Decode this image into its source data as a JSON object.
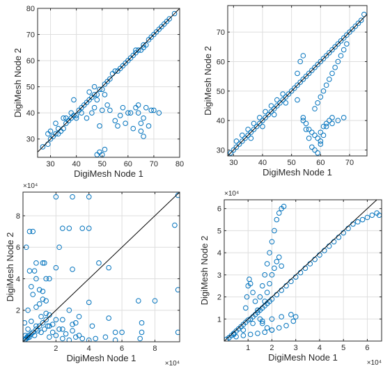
{
  "colors": {
    "marker": "#0072BD",
    "diagonal": "#000000",
    "grid": "#dedede",
    "axis": "#262626"
  },
  "chart_data": [
    {
      "type": "scatter",
      "xlabel": "DigiMesh Node 1",
      "ylabel": "DigiMesh Node 2",
      "xlim": [
        25,
        80
      ],
      "ylim": [
        23,
        80
      ],
      "xticks": [
        30,
        40,
        50,
        60,
        70,
        80
      ],
      "yticks": [
        30,
        40,
        50,
        60,
        70,
        80
      ],
      "tick_labels_x": [
        "30",
        "40",
        "50",
        "60",
        "70",
        "80"
      ],
      "tick_labels_y": [
        "30",
        "40",
        "50",
        "60",
        "70",
        "80"
      ],
      "exponent_label": "",
      "grid": true,
      "reference_line": "y = x",
      "x": [
        27,
        29,
        30,
        31,
        32,
        33,
        34,
        35,
        36,
        37,
        38,
        39,
        40,
        41,
        42,
        43,
        44,
        45,
        46,
        47,
        48,
        49,
        50,
        51,
        52,
        53,
        54,
        55,
        56,
        57,
        58,
        59,
        60,
        61,
        62,
        63,
        64,
        65,
        66,
        67,
        68,
        69,
        70,
        71,
        72,
        73,
        74,
        75,
        76,
        78,
        30,
        33,
        36,
        38,
        40,
        42,
        44,
        46,
        47,
        48,
        49,
        50,
        52,
        53,
        55,
        56,
        57,
        58,
        59,
        60,
        61,
        62,
        63,
        64,
        64,
        65,
        65,
        66,
        66,
        67,
        68,
        69,
        70,
        72,
        48,
        49,
        50,
        51,
        63,
        66,
        29,
        32,
        35,
        39,
        45,
        47,
        51
      ],
      "y": [
        27,
        28,
        30,
        31,
        32,
        32,
        33,
        34,
        36,
        37,
        38,
        39,
        39,
        41,
        42,
        43,
        44,
        45,
        46,
        47,
        47,
        49,
        49,
        51,
        52,
        53,
        55,
        56,
        56,
        57,
        58,
        59,
        60,
        61,
        62,
        63,
        64,
        64,
        66,
        66,
        68,
        69,
        70,
        71,
        72,
        73,
        74,
        75,
        76,
        78,
        33,
        34,
        38,
        40,
        38,
        40,
        38,
        40,
        42,
        45,
        35,
        41,
        43,
        41,
        37,
        35,
        39,
        42,
        36,
        40,
        40,
        34,
        42,
        43,
        40,
        36,
        33,
        31,
        38,
        42,
        35,
        41,
        41,
        40,
        24,
        25,
        24,
        26,
        64,
        65,
        32,
        36,
        38,
        45,
        48,
        50,
        47
      ]
    },
    {
      "type": "scatter",
      "xlabel": "DigiMesh Node 1",
      "ylabel": "DigiMesh Node 2",
      "xlim": [
        28,
        76
      ],
      "ylim": [
        28,
        79
      ],
      "xticks": [
        30,
        40,
        50,
        60,
        70
      ],
      "yticks": [
        30,
        40,
        50,
        60,
        70
      ],
      "tick_labels_x": [
        "30",
        "40",
        "50",
        "60",
        "70"
      ],
      "tick_labels_y": [
        "30",
        "40",
        "50",
        "60",
        "70"
      ],
      "exponent_label": "",
      "grid": true,
      "reference_line": "y = x",
      "x": [
        29,
        30,
        31,
        32,
        33,
        34,
        35,
        36,
        37,
        38,
        39,
        40,
        41,
        42,
        43,
        44,
        45,
        46,
        47,
        48,
        49,
        50,
        51,
        52,
        53,
        54,
        55,
        56,
        57,
        58,
        59,
        60,
        61,
        62,
        63,
        64,
        65,
        66,
        67,
        68,
        69,
        70,
        71,
        72,
        73,
        74,
        75,
        31,
        33,
        35,
        37,
        39,
        41,
        43,
        45,
        47,
        36,
        40,
        44,
        48,
        52,
        54,
        55,
        56,
        57,
        58,
        59,
        60,
        61,
        62,
        64,
        66,
        68,
        58,
        59,
        60,
        61,
        62,
        63,
        64,
        65,
        66,
        67,
        68,
        69,
        54,
        55,
        56,
        57,
        58,
        59,
        60,
        60,
        61,
        62,
        63,
        64,
        52,
        53,
        54
      ],
      "y": [
        29,
        30,
        31,
        32,
        33,
        34,
        35,
        36,
        37,
        38,
        39,
        40,
        41,
        42,
        43,
        44,
        45,
        46,
        47,
        48,
        49,
        50,
        51,
        52,
        53,
        54,
        55,
        56,
        57,
        58,
        59,
        60,
        61,
        62,
        63,
        64,
        65,
        66,
        67,
        68,
        69,
        70,
        71,
        72,
        73,
        74,
        76,
        33,
        35,
        37,
        39,
        41,
        43,
        45,
        47,
        49,
        34,
        38,
        42,
        46,
        47,
        41,
        37,
        34,
        31,
        30,
        29,
        32,
        35,
        38,
        39,
        40,
        41,
        44,
        46,
        48,
        50,
        52,
        54,
        56,
        58,
        60,
        62,
        64,
        66,
        40,
        39,
        37,
        36,
        35,
        34,
        33,
        36,
        38,
        39,
        40,
        41,
        56,
        60,
        62
      ]
    },
    {
      "type": "scatter",
      "xlabel": "DigiMesh Node 1",
      "ylabel": "DigiMesh Node 2",
      "xlim": [
        0,
        95000
      ],
      "ylim": [
        0,
        95000
      ],
      "xticks": [
        20000,
        40000,
        60000,
        80000
      ],
      "yticks": [
        20000,
        40000,
        60000,
        80000
      ],
      "tick_labels_x": [
        "2",
        "4",
        "6",
        "8"
      ],
      "tick_labels_y": [
        "2",
        "4",
        "6",
        "8"
      ],
      "exponent_label": "×10⁴",
      "grid": true,
      "reference_line": "y = x",
      "x": [
        1000,
        1500,
        2000,
        2500,
        3000,
        3500,
        4000,
        5000,
        6000,
        7000,
        8000,
        9000,
        10000,
        11000,
        12000,
        13000,
        14000,
        15000,
        16000,
        18000,
        20000,
        22000,
        24000,
        26000,
        28000,
        30000,
        32000,
        34000,
        36000,
        40000,
        44000,
        50000,
        56000,
        72000,
        94000,
        3000,
        6000,
        8000,
        10000,
        12000,
        13000,
        14000,
        16000,
        20000,
        22000,
        24000,
        28000,
        30000,
        36000,
        40000,
        46000,
        52000,
        60000,
        70000,
        80000,
        94000,
        2000,
        4000,
        6000,
        8000,
        10000,
        12000,
        14000,
        16000,
        20000,
        24000,
        28000,
        30000,
        34000,
        40000,
        52000,
        71000,
        94000,
        4000,
        8000,
        12000,
        16000,
        20000,
        30000,
        40000,
        1000,
        3000,
        5000,
        8000,
        11000,
        14000,
        18000,
        24000,
        32000,
        42000,
        56000,
        72000,
        92000,
        1500,
        2500,
        5000,
        7000
      ],
      "y": [
        1000,
        1500,
        2000,
        3000,
        2500,
        4000,
        3000,
        5000,
        6000,
        4000,
        8000,
        7000,
        10000,
        6000,
        12000,
        8000,
        14000,
        10000,
        3000,
        6000,
        4000,
        8000,
        2000,
        5000,
        1000,
        7000,
        3000,
        4000,
        2000,
        1000,
        2000,
        3000,
        1000,
        6000,
        6000,
        20000,
        30000,
        40000,
        33000,
        27000,
        50000,
        40000,
        17000,
        47000,
        60000,
        72000,
        72000,
        46000,
        72000,
        72000,
        50000,
        47000,
        6000,
        26000,
        26000,
        93000,
        60000,
        70000,
        70000,
        10000,
        24000,
        32000,
        18000,
        10000,
        14000,
        8000,
        20000,
        11000,
        16000,
        25000,
        15000,
        2000,
        33000,
        45000,
        50000,
        50000,
        40000,
        92000,
        92000,
        92000,
        12000,
        8000,
        13000,
        22000,
        16000,
        26000,
        11000,
        14000,
        12000,
        10000,
        6000,
        12000,
        74000,
        4000,
        3000,
        35000,
        45000
      ]
    },
    {
      "type": "scatter",
      "xlabel": "DigiMesh Node 1",
      "ylabel": "DigiMesh Node 2",
      "xlim": [
        0,
        66000
      ],
      "ylim": [
        0,
        64000
      ],
      "xticks": [
        10000,
        20000,
        30000,
        40000,
        50000,
        60000
      ],
      "yticks": [
        10000,
        20000,
        30000,
        40000,
        50000,
        60000
      ],
      "tick_labels_x": [
        "1",
        "2",
        "3",
        "4",
        "5",
        "6"
      ],
      "tick_labels_y": [
        "1",
        "2",
        "3",
        "4",
        "5",
        "6"
      ],
      "exponent_label": "×10⁴",
      "grid": true,
      "reference_line": "y = x",
      "x": [
        1000,
        2000,
        3000,
        4000,
        5000,
        6000,
        7000,
        8000,
        9000,
        10000,
        11000,
        12000,
        13000,
        14000,
        15000,
        16000,
        17000,
        18000,
        19000,
        20000,
        22000,
        24000,
        26000,
        28000,
        30000,
        32000,
        34000,
        36000,
        38000,
        40000,
        42000,
        44000,
        46000,
        48000,
        50000,
        52000,
        54000,
        56000,
        58000,
        60000,
        62000,
        64000,
        65000,
        2000,
        5000,
        8000,
        11000,
        14000,
        17000,
        20000,
        23000,
        26000,
        29000,
        30000,
        28000,
        24000,
        20000,
        16000,
        12000,
        8000,
        4000,
        15000,
        16000,
        17000,
        18000,
        19000,
        20000,
        21000,
        22000,
        23000,
        24000,
        25000,
        17000,
        18000,
        19000,
        20000,
        21000,
        22000,
        23000,
        24000,
        9000,
        9500,
        10000,
        10500,
        11000,
        12000,
        13000,
        14000,
        15000,
        16000,
        18000,
        20000
      ],
      "y": [
        800,
        1500,
        2500,
        3500,
        4500,
        5500,
        6500,
        7500,
        8500,
        9500,
        10000,
        11000,
        12000,
        13000,
        14000,
        15000,
        16000,
        17000,
        18000,
        19000,
        21000,
        23000,
        25000,
        27000,
        29000,
        31000,
        33000,
        35000,
        37000,
        39000,
        41000,
        43000,
        45000,
        47000,
        49000,
        51000,
        53000,
        54000,
        55000,
        56000,
        57000,
        58000,
        57000,
        1500,
        2000,
        2500,
        3000,
        3500,
        4000,
        5000,
        6000,
        7000,
        9000,
        11000,
        12000,
        11000,
        10000,
        9000,
        8000,
        5000,
        3000,
        20000,
        25000,
        30000,
        35000,
        40000,
        45000,
        50000,
        55000,
        58000,
        60000,
        61000,
        18000,
        22000,
        26000,
        30000,
        33000,
        36000,
        38000,
        34000,
        15000,
        20000,
        25000,
        28000,
        26000,
        22000,
        18000,
        14000,
        10000,
        8000,
        6000,
        5000
      ]
    }
  ]
}
